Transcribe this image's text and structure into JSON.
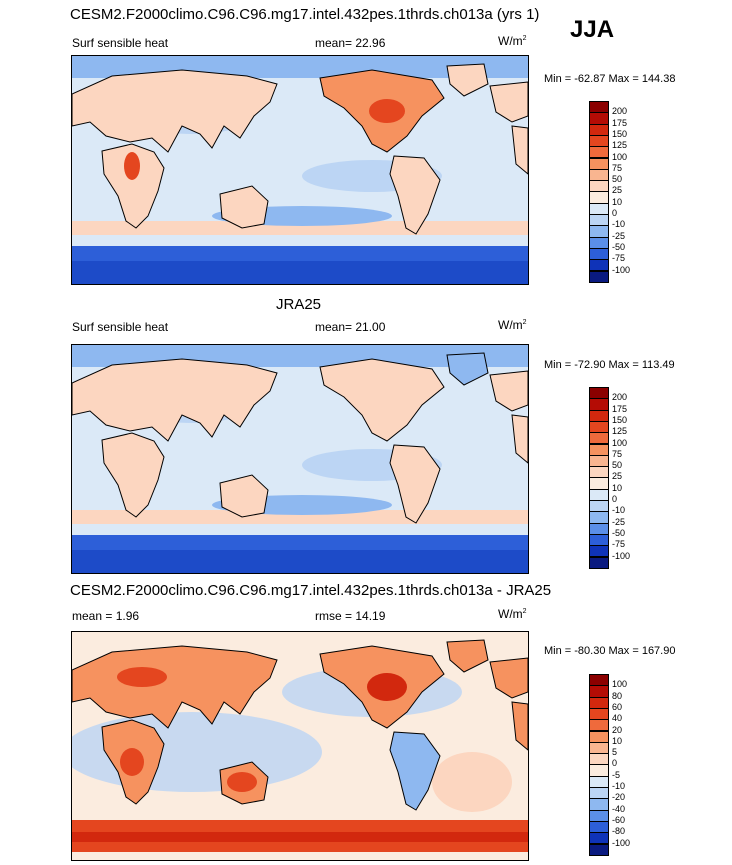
{
  "season": "JJA",
  "panels": [
    {
      "title": "CESM2.F2000climo.C96.C96.mg17.intel.432pes.1thrds.ch013a (yrs 1)",
      "left_label": "Surf sensible heat",
      "center_label": "mean=  22.96",
      "units": "W/m",
      "units_exp": "2",
      "minmax": "Min = -62.87 Max = 144.38",
      "colorbar_labels": [
        "200",
        "175",
        "150",
        "125",
        "100",
        "75",
        "50",
        "25",
        "10",
        "0",
        "-10",
        "-25",
        "-50",
        "-75",
        "-100"
      ]
    },
    {
      "title": "JRA25",
      "left_label": "Surf sensible heat",
      "center_label": "mean=  21.00",
      "units": "W/m",
      "units_exp": "2",
      "minmax": "Min = -72.90 Max = 113.49",
      "colorbar_labels": [
        "200",
        "175",
        "150",
        "125",
        "100",
        "75",
        "50",
        "25",
        "10",
        "0",
        "-10",
        "-25",
        "-50",
        "-75",
        "-100"
      ]
    },
    {
      "title": "CESM2.F2000climo.C96.C96.mg17.intel.432pes.1thrds.ch013a - JRA25",
      "left_label": "mean =   1.96",
      "center_label": "rmse =  14.19",
      "units": "W/m",
      "units_exp": "2",
      "minmax": "Min = -80.30 Max = 167.90",
      "colorbar_labels": [
        "100",
        "80",
        "60",
        "40",
        "20",
        "10",
        "5",
        "0",
        "-5",
        "-10",
        "-20",
        "-40",
        "-60",
        "-80",
        "-100"
      ]
    }
  ],
  "colors": {
    "cbar": [
      "#8b0000",
      "#b40c05",
      "#d2280e",
      "#e4461f",
      "#ef6a3c",
      "#f6925f",
      "#f9b590",
      "#fcd6c0",
      "#fbecdf",
      "#dbe9f7",
      "#bcd5f4",
      "#8eb8f0",
      "#5b8fe8",
      "#2d5fd8",
      "#0f33b8",
      "#0a1a80"
    ],
    "ocean_light": "#dbe9f7",
    "ocean_mid": "#bcd5f4",
    "ocean_blue": "#8eb8f0",
    "antarctic": "#2d5fd8",
    "land_pos": "#fcd6c0",
    "land_warm": "#f6925f",
    "land_hot": "#e4461f"
  },
  "chart_data": [
    {
      "type": "heatmap",
      "title": "CESM2.F2000climo.C96.C96.mg17.intel.432pes.1thrds.ch013a (yrs 1)",
      "variable": "Surf sensible heat",
      "units": "W/m2",
      "mean": 22.96,
      "min": -62.87,
      "max": 144.38,
      "contour_levels": [
        -100,
        -75,
        -50,
        -25,
        -10,
        0,
        10,
        25,
        50,
        75,
        100,
        125,
        150,
        175,
        200
      ]
    },
    {
      "type": "heatmap",
      "title": "JRA25",
      "variable": "Surf sensible heat",
      "units": "W/m2",
      "mean": 21.0,
      "min": -72.9,
      "max": 113.49,
      "contour_levels": [
        -100,
        -75,
        -50,
        -25,
        -10,
        0,
        10,
        25,
        50,
        75,
        100,
        125,
        150,
        175,
        200
      ]
    },
    {
      "type": "heatmap",
      "title": "CESM2.F2000climo.C96.C96.mg17.intel.432pes.1thrds.ch013a - JRA25",
      "units": "W/m2",
      "mean": 1.96,
      "rmse": 14.19,
      "min": -80.3,
      "max": 167.9,
      "contour_levels": [
        -100,
        -80,
        -60,
        -40,
        -20,
        -10,
        -5,
        0,
        5,
        10,
        20,
        40,
        60,
        80,
        100
      ]
    }
  ]
}
